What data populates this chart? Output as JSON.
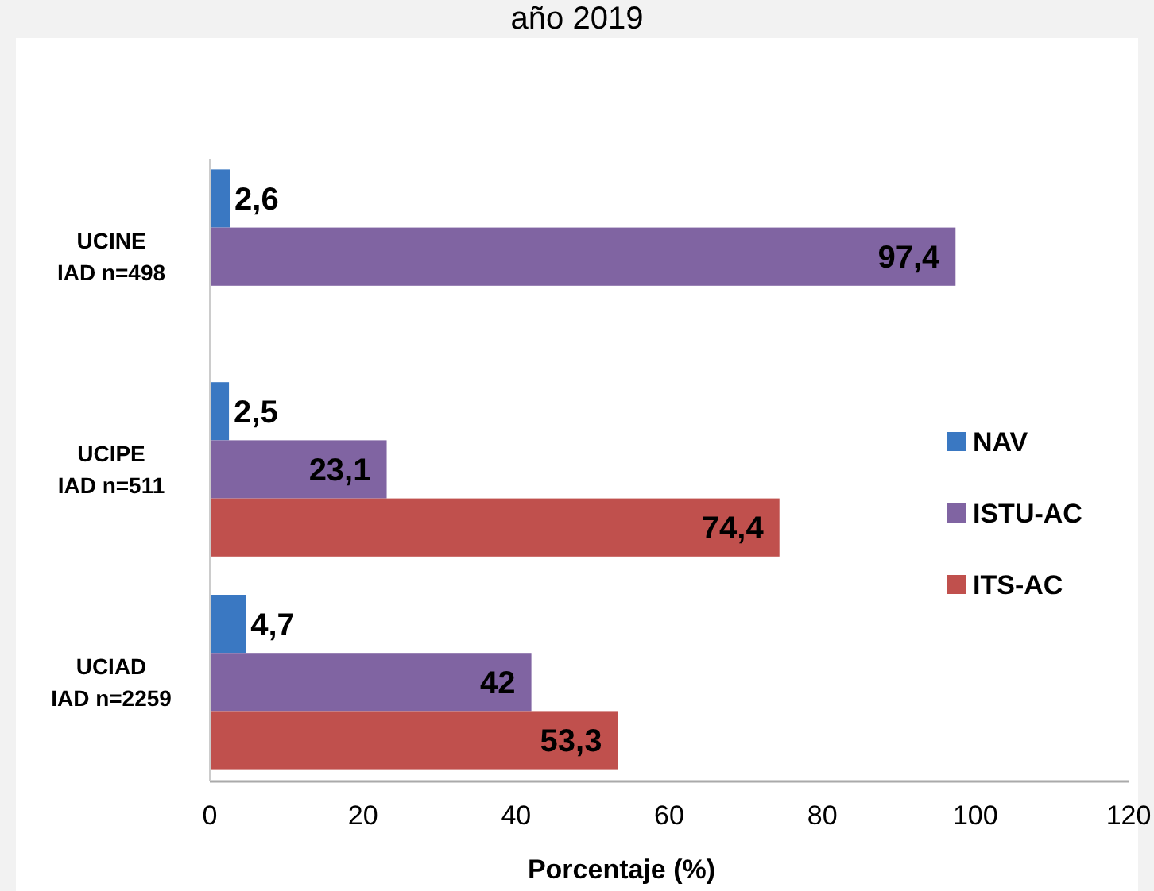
{
  "chart_data": {
    "type": "bar",
    "orientation": "horizontal",
    "title": "año 2019",
    "xlabel": "Porcentaje (%)",
    "categories": [
      "UCINE\nIAD n=498",
      "UCIPE\nIAD n=511",
      "UCIAD\nIAD n=2259"
    ],
    "series": [
      {
        "name": "NAV",
        "color": "#3a78c2",
        "values": [
          2.6,
          2.5,
          4.7
        ],
        "value_labels": [
          "2,6",
          "2,5",
          "4,7"
        ]
      },
      {
        "name": "ISTU-AC",
        "color": "#8064a2",
        "values": [
          97.4,
          23.1,
          42
        ],
        "value_labels": [
          "97,4",
          "23,1",
          "42"
        ]
      },
      {
        "name": "ITS-AC",
        "color": "#c0504d",
        "values": [
          null,
          74.4,
          53.3
        ],
        "value_labels": [
          null,
          "74,4",
          "53,3"
        ]
      }
    ],
    "xlim": [
      0,
      120
    ],
    "xticks": [
      0,
      20,
      40,
      60,
      80,
      100,
      120
    ],
    "grid": false,
    "legend": "right"
  }
}
